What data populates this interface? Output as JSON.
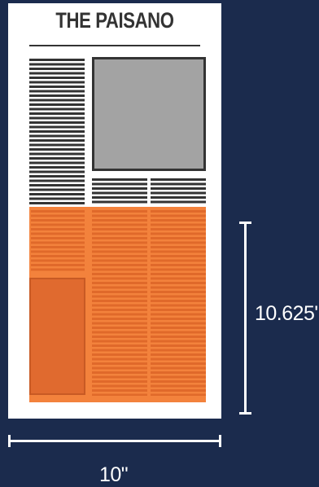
{
  "newspaper": {
    "masthead": "THE PAISANO"
  },
  "dimensions": {
    "height_label": "10.625\"",
    "width_label": "10\""
  },
  "colors": {
    "background": "#1b2b4d",
    "paper": "#ffffff",
    "text_dark": "#333333",
    "photo_gray": "#a3a3a3",
    "ad_orange": "#f3823c",
    "ad_orange_dark": "#e06a2f"
  }
}
